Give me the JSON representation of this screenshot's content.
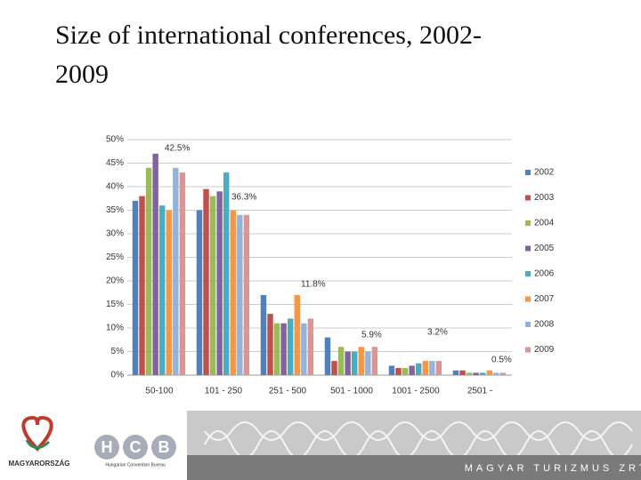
{
  "chart_data": {
    "type": "bar",
    "title": "Size of international conferences, 2002-2009",
    "categories": [
      "50-100",
      "101 - 250",
      "251 - 500",
      "501 - 1000",
      "1001 - 2500",
      "2501 -"
    ],
    "series": [
      {
        "name": "2002",
        "color": "#4f81bd",
        "values": [
          37,
          35,
          17,
          8,
          2,
          1
        ]
      },
      {
        "name": "2003",
        "color": "#c0504d",
        "values": [
          38,
          39.5,
          13,
          3,
          1.5,
          1
        ]
      },
      {
        "name": "2004",
        "color": "#9bbb59",
        "values": [
          44,
          38,
          11,
          6,
          1.5,
          0.5
        ]
      },
      {
        "name": "2005",
        "color": "#8064a2",
        "values": [
          47,
          39,
          11,
          5,
          2,
          0.5
        ]
      },
      {
        "name": "2006",
        "color": "#4bacc6",
        "values": [
          36,
          43,
          12,
          5,
          2.5,
          0.5
        ]
      },
      {
        "name": "2007",
        "color": "#f79646",
        "values": [
          35,
          35,
          17,
          6,
          3,
          1
        ]
      },
      {
        "name": "2008",
        "color": "#95b3d7",
        "values": [
          44,
          34,
          11,
          5,
          3,
          0.5
        ]
      },
      {
        "name": "2009",
        "color": "#d99694",
        "values": [
          43,
          34,
          12,
          6,
          3,
          0.5
        ]
      }
    ],
    "annotations": [
      "42.5%",
      "36.3%",
      "11.8%",
      "5.9%",
      "3.2%",
      "0.5%"
    ],
    "ylim": [
      0,
      50
    ],
    "yticks": [
      {
        "value": 0,
        "label": "0%"
      },
      {
        "value": 5,
        "label": "5%"
      },
      {
        "value": 10,
        "label": "10%"
      },
      {
        "value": 15,
        "label": "15%"
      },
      {
        "value": 20,
        "label": "20%"
      },
      {
        "value": 25,
        "label": "25%"
      },
      {
        "value": 30,
        "label": "30%"
      },
      {
        "value": 35,
        "label": "35%"
      },
      {
        "value": 40,
        "label": "40%"
      },
      {
        "value": 45,
        "label": "45%"
      },
      {
        "value": 50,
        "label": "50%"
      }
    ],
    "grid": true,
    "legend": "right"
  },
  "footer": {
    "country": "MAGYARORSZÁG",
    "hcb_letters": [
      "H",
      "C",
      "B"
    ],
    "hcb_name": "Hungarian Convention Bureau",
    "company": "MAGYAR TURIZMUS ZRT."
  }
}
